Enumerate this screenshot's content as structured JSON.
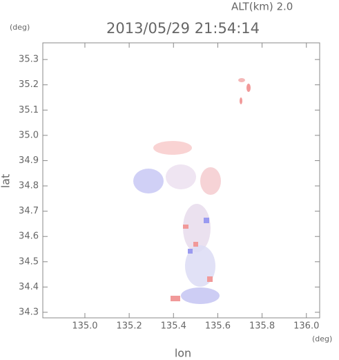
{
  "chart_data": {
    "type": "map",
    "title": "2013/05/29 21:54:14",
    "annotation": "ALT(km) 2.0",
    "x_label": "lon",
    "y_label": "lat",
    "x_unit": "(deg)",
    "y_unit": "(deg)",
    "xlim": [
      134.81,
      136.06
    ],
    "ylim": [
      34.278,
      35.366
    ],
    "xticks": [
      {
        "value": 135.0,
        "label": "135.0"
      },
      135.2,
      135.4,
      135.6,
      135.8,
      {
        "value": 136.0,
        "label": "136.0"
      }
    ],
    "yticks": [
      34.3,
      34.4,
      34.5,
      34.6,
      34.7,
      34.8,
      34.9,
      {
        "value": 35.0,
        "label": "35.0"
      },
      35.1,
      35.2,
      35.3
    ]
  }
}
